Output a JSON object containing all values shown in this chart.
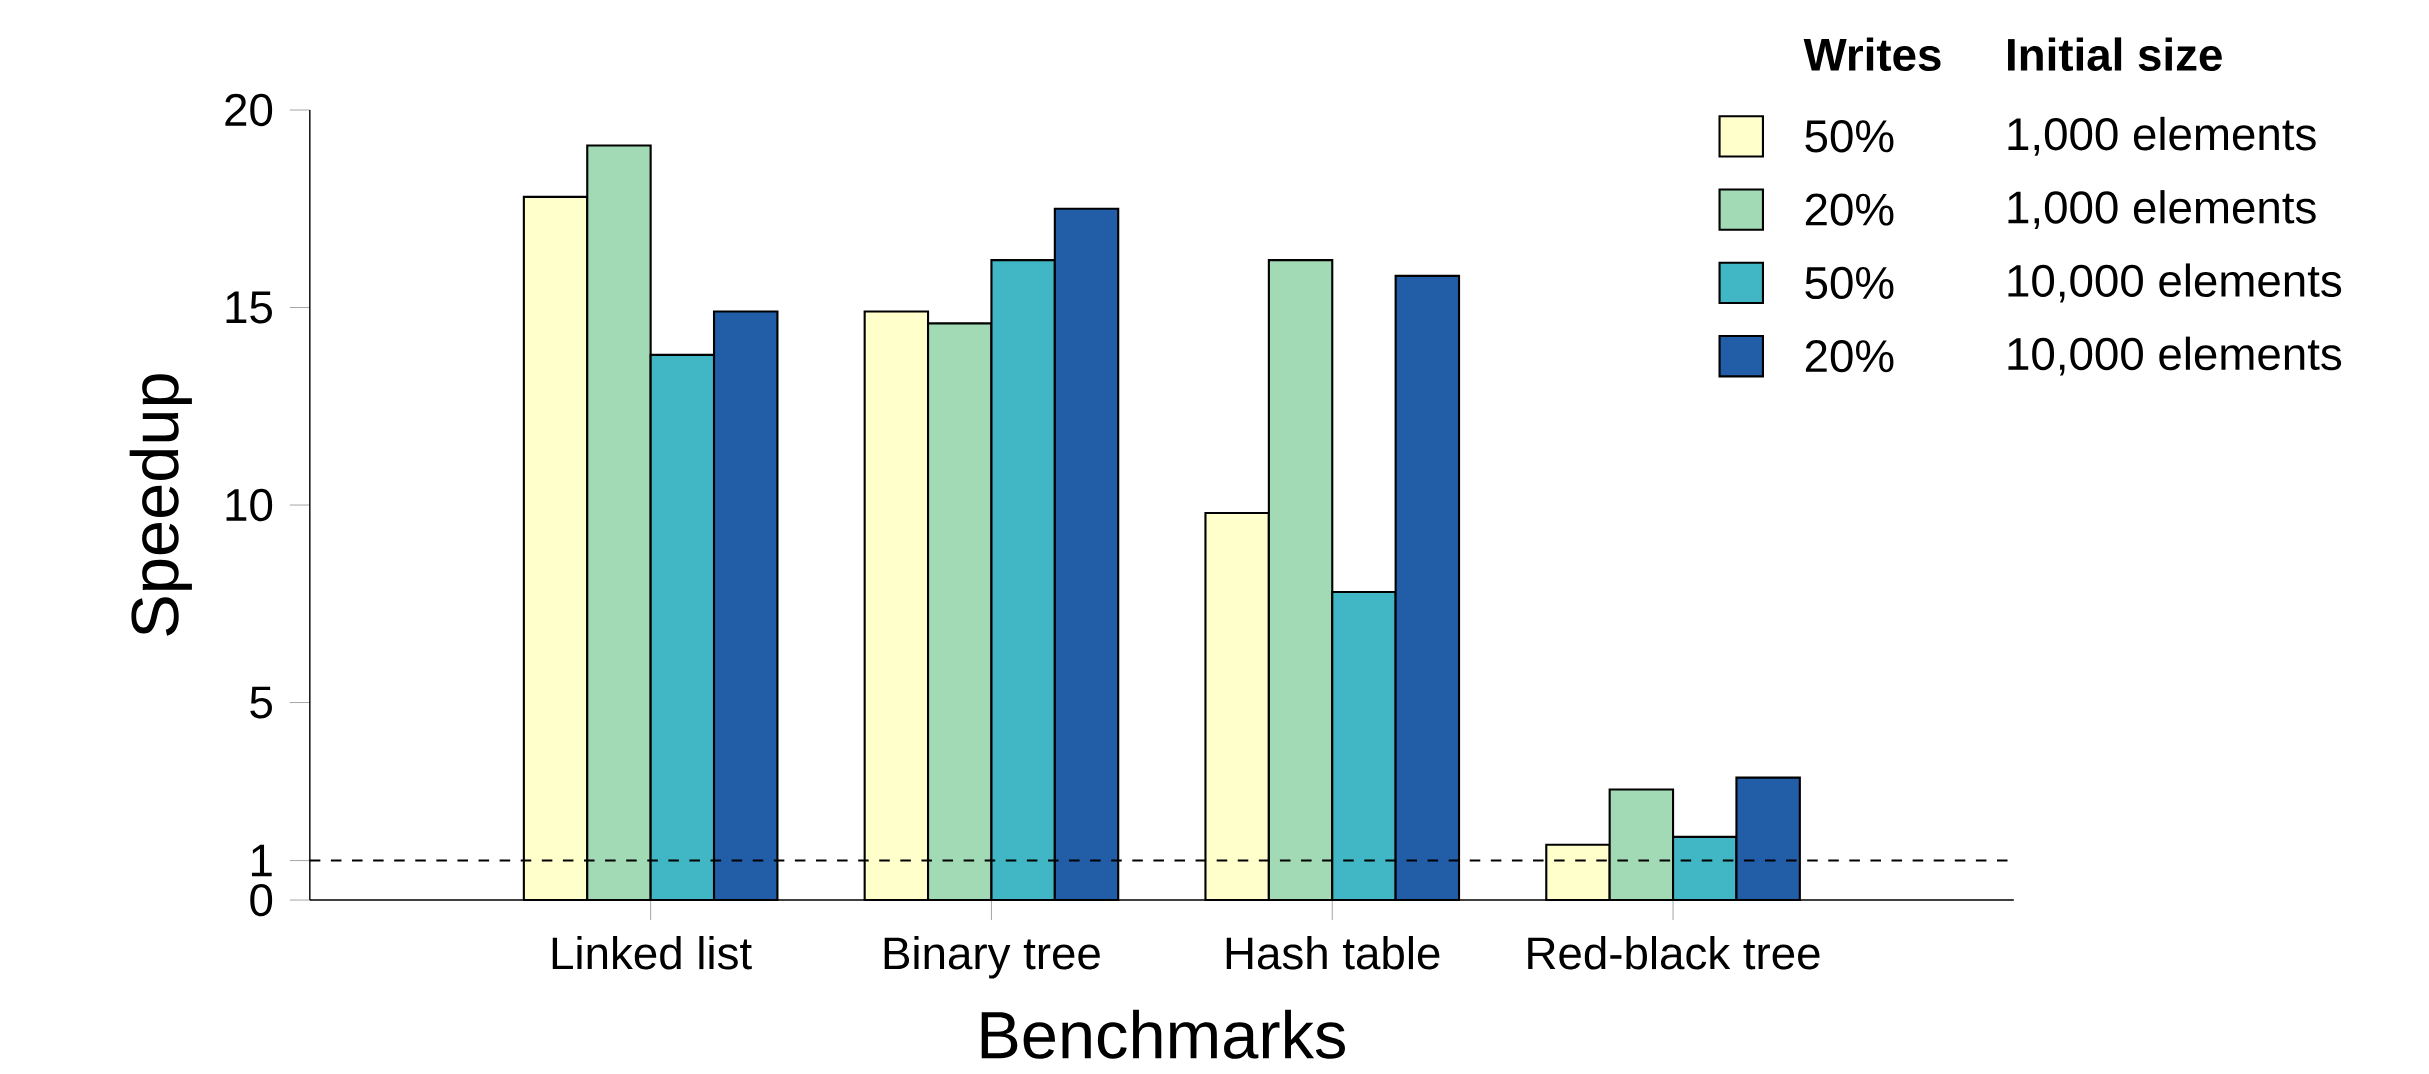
{
  "chart_data": {
    "type": "bar",
    "xlabel": "Benchmarks",
    "ylabel": "Speedup",
    "categories": [
      "Linked list",
      "Binary tree",
      "Hash table",
      "Red-black tree"
    ],
    "series": [
      {
        "name": "50%",
        "color": "#ffffcc",
        "values": [
          17.8,
          14.9,
          9.8,
          1.4
        ]
      },
      {
        "name": "20%",
        "color": "#a1dab4",
        "values": [
          19.1,
          14.6,
          16.2,
          2.8
        ]
      },
      {
        "name": "50%",
        "color": "#41b6c4",
        "values": [
          13.8,
          16.2,
          7.8,
          1.6
        ]
      },
      {
        "name": "20%",
        "color": "#225ea8",
        "values": [
          14.9,
          17.5,
          15.8,
          3.1
        ]
      }
    ],
    "ylim": [
      0,
      20
    ],
    "yticks": [
      0,
      1,
      5,
      10,
      15,
      20
    ],
    "ref_lines": [
      {
        "axis": "y",
        "value": 1,
        "line_style": "dashed"
      }
    ],
    "legend": "top right",
    "legend_title": "Writes",
    "annotations": [
      "Initial size",
      "1,000 elements",
      "1,000 elements",
      "10,000 elements",
      "10,000 elements"
    ]
  }
}
